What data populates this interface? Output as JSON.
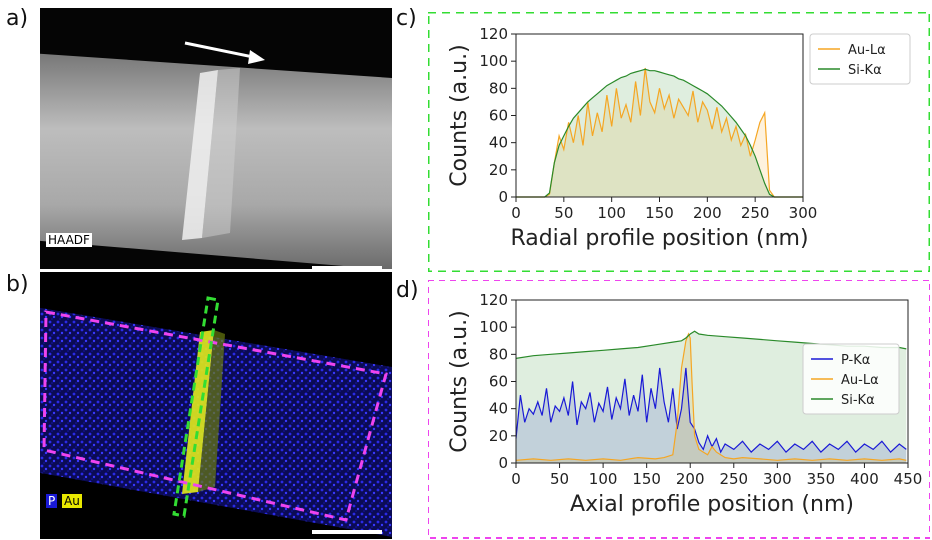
{
  "panels": {
    "a": "a)",
    "b": "b)",
    "c": "c)",
    "d": "d)"
  },
  "micrograph_a": {
    "label": "HAADF"
  },
  "micrograph_b": {
    "label_p": "P",
    "label_au": "Au"
  },
  "colors": {
    "green_box": "#33dd33",
    "magenta_box": "#ee44ee",
    "au": "#f5a623",
    "si": "#2a8a2a",
    "p": "#1a1ad6"
  },
  "chart_data": [
    {
      "type": "line",
      "panel": "c",
      "xlabel": "Radial profile position (nm)",
      "ylabel": "Counts (a.u.)",
      "xlim": [
        0,
        300
      ],
      "ylim": [
        0,
        120
      ],
      "xticks": [
        "0",
        "50",
        "100",
        "150",
        "200",
        "250",
        "300"
      ],
      "yticks": [
        "0",
        "20",
        "40",
        "60",
        "80",
        "100",
        "120"
      ],
      "legend_position": "top-right",
      "series": [
        {
          "name": "Au-Lα",
          "color": "#f5a623",
          "x": [
            0,
            30,
            35,
            40,
            45,
            50,
            55,
            60,
            65,
            70,
            75,
            80,
            85,
            90,
            95,
            100,
            105,
            110,
            115,
            120,
            125,
            130,
            135,
            140,
            145,
            150,
            155,
            160,
            165,
            170,
            175,
            180,
            185,
            190,
            195,
            200,
            205,
            210,
            215,
            220,
            225,
            230,
            235,
            240,
            245,
            250,
            255,
            260,
            265,
            270,
            300
          ],
          "y": [
            0,
            0,
            2,
            25,
            45,
            35,
            55,
            40,
            60,
            38,
            70,
            45,
            62,
            48,
            75,
            52,
            80,
            58,
            68,
            55,
            85,
            60,
            95,
            70,
            62,
            80,
            65,
            75,
            58,
            72,
            66,
            60,
            78,
            55,
            70,
            64,
            50,
            66,
            48,
            58,
            42,
            52,
            38,
            46,
            30,
            42,
            55,
            62,
            5,
            0,
            0
          ]
        },
        {
          "name": "Si-Kα",
          "color": "#2a8a2a",
          "x": [
            0,
            30,
            35,
            40,
            45,
            50,
            55,
            60,
            65,
            70,
            75,
            80,
            85,
            90,
            95,
            100,
            105,
            110,
            115,
            120,
            125,
            130,
            135,
            140,
            145,
            150,
            155,
            160,
            165,
            170,
            175,
            180,
            185,
            190,
            195,
            200,
            205,
            210,
            215,
            220,
            225,
            230,
            235,
            240,
            245,
            250,
            255,
            260,
            265,
            270,
            300
          ],
          "y": [
            0,
            0,
            3,
            25,
            38,
            45,
            52,
            58,
            62,
            66,
            70,
            73,
            76,
            79,
            82,
            84,
            86,
            88,
            89,
            91,
            92,
            93,
            94,
            93,
            93,
            92,
            91,
            90,
            89,
            87,
            86,
            84,
            82,
            80,
            78,
            76,
            73,
            70,
            67,
            63,
            59,
            55,
            50,
            45,
            38,
            30,
            20,
            10,
            2,
            0,
            0
          ]
        }
      ]
    },
    {
      "type": "line",
      "panel": "d",
      "xlabel": "Axial profile position (nm)",
      "ylabel": "Counts (a.u.)",
      "xlim": [
        0,
        450
      ],
      "ylim": [
        0,
        120
      ],
      "xticks": [
        "0",
        "50",
        "100",
        "150",
        "200",
        "250",
        "300",
        "350",
        "400",
        "450"
      ],
      "yticks": [
        "0",
        "20",
        "40",
        "60",
        "80",
        "100",
        "120"
      ],
      "legend_position": "center-right",
      "series": [
        {
          "name": "P-Kα",
          "color": "#1a1ad6",
          "x": [
            0,
            5,
            10,
            15,
            20,
            25,
            30,
            35,
            40,
            45,
            50,
            55,
            60,
            65,
            70,
            75,
            80,
            85,
            90,
            95,
            100,
            105,
            110,
            115,
            120,
            125,
            130,
            135,
            140,
            145,
            150,
            155,
            160,
            165,
            170,
            175,
            180,
            185,
            190,
            195,
            200,
            205,
            210,
            215,
            220,
            225,
            230,
            235,
            240,
            250,
            260,
            270,
            280,
            290,
            300,
            310,
            320,
            330,
            340,
            350,
            360,
            370,
            380,
            390,
            400,
            410,
            420,
            430,
            440,
            448
          ],
          "y": [
            18,
            50,
            30,
            40,
            36,
            45,
            35,
            55,
            30,
            42,
            38,
            48,
            35,
            60,
            28,
            45,
            40,
            52,
            30,
            44,
            38,
            56,
            32,
            48,
            40,
            62,
            35,
            50,
            38,
            65,
            30,
            55,
            40,
            70,
            45,
            30,
            55,
            25,
            40,
            70,
            30,
            25,
            15,
            10,
            20,
            12,
            18,
            8,
            14,
            10,
            16,
            8,
            14,
            10,
            16,
            8,
            14,
            10,
            16,
            8,
            14,
            10,
            16,
            8,
            14,
            10,
            16,
            8,
            14,
            10
          ]
        },
        {
          "name": "Au-Lα",
          "color": "#f5a623",
          "x": [
            0,
            20,
            40,
            60,
            80,
            100,
            120,
            140,
            160,
            170,
            180,
            185,
            190,
            195,
            198,
            200,
            202,
            205,
            210,
            215,
            220,
            225,
            230,
            240,
            250,
            260,
            280,
            300,
            320,
            340,
            360,
            380,
            400,
            420,
            440,
            448
          ],
          "y": [
            2,
            3,
            2,
            3,
            2,
            3,
            2,
            4,
            3,
            4,
            6,
            30,
            70,
            90,
            95,
            92,
            60,
            20,
            10,
            8,
            6,
            12,
            8,
            4,
            3,
            4,
            3,
            2,
            3,
            2,
            3,
            2,
            3,
            2,
            3,
            2
          ]
        },
        {
          "name": "Si-Kα",
          "color": "#2a8a2a",
          "x": [
            0,
            20,
            40,
            60,
            80,
            100,
            120,
            140,
            160,
            180,
            190,
            195,
            200,
            205,
            210,
            220,
            240,
            260,
            280,
            300,
            320,
            340,
            360,
            380,
            400,
            420,
            440,
            448
          ],
          "y": [
            77,
            79,
            80,
            81,
            82,
            83,
            84,
            85,
            87,
            89,
            90,
            92,
            95,
            97,
            95,
            94,
            93,
            92,
            91,
            90,
            89,
            88,
            87,
            86,
            86,
            85,
            85,
            84
          ]
        }
      ]
    }
  ]
}
